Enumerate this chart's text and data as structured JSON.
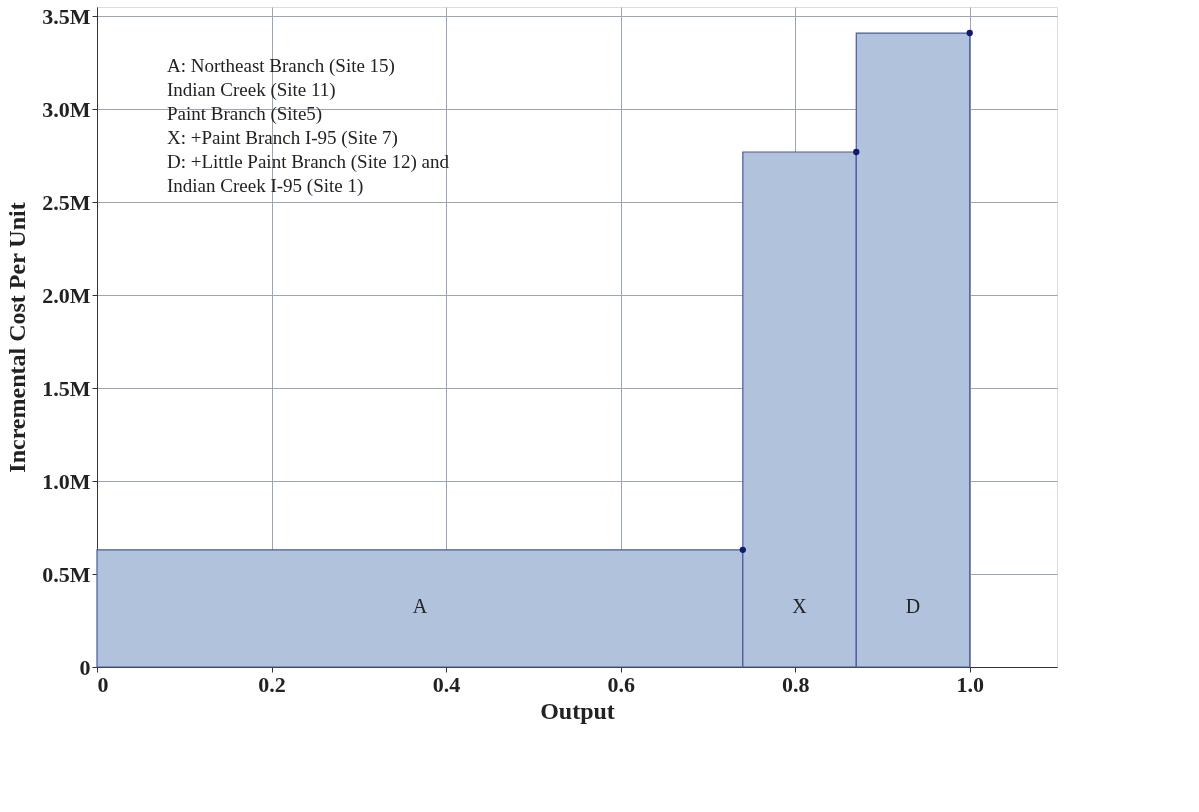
{
  "chart_data": {
    "type": "histogram",
    "xlabel": "Output",
    "ylabel": "Incremental Cost Per Unit",
    "bins": [
      0,
      0.74,
      0.87,
      1.0
    ],
    "values": [
      0.63,
      2.77,
      3.41
    ],
    "color": "#b0c2dc",
    "series": [
      {
        "type": "scatter",
        "x": [
          0.74,
          0.87,
          1.0
        ],
        "values": [
          0.63,
          2.77,
          3.41
        ],
        "color": "#101a70",
        "marker": "circle"
      }
    ],
    "xlim": [
      0,
      1.1
    ],
    "xticks": [
      0,
      0.2,
      0.4,
      0.6,
      0.8,
      {
        "value": 1.0,
        "label": "1.0"
      }
    ],
    "ylim": [
      0,
      3.55
    ],
    "yticks": [
      0,
      {
        "value": 0.5,
        "label": "0.5M"
      },
      {
        "value": 1.0,
        "label": "1.0M"
      },
      {
        "value": 1.5,
        "label": "1.5M"
      },
      {
        "value": 2.0,
        "label": "2.0M"
      },
      {
        "value": 2.5,
        "label": "2.5M"
      },
      {
        "value": 3.0,
        "label": "3.0M"
      },
      {
        "value": 3.5,
        "label": "3.5M"
      }
    ],
    "grid": true,
    "annotations": [
      "A: Northeast Branch  (Site 15)\n    Indian Creek (Site 11)\n    Paint Branch (Site5)\nX: +Paint Branch I-95 (Site 7)\nD: +Little Paint Branch (Site 12) and\nIndian Creek I-95 (Site 1)",
      "A",
      "X",
      "D"
    ]
  }
}
